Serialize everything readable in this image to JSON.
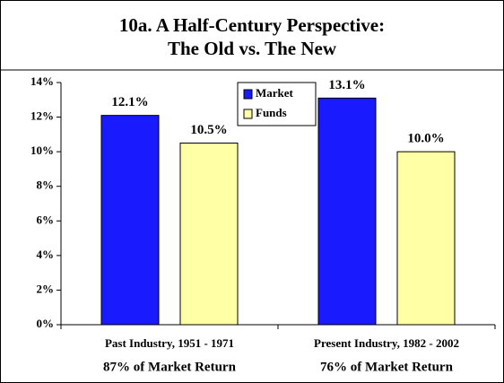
{
  "chart_data": {
    "type": "bar",
    "title": [
      "10a. A Half-Century Perspective:",
      "The Old vs. The New"
    ],
    "categories": [
      "Past Industry, 1951 - 1971",
      "Present Industry, 1982 - 2002"
    ],
    "category_notes": [
      "87% of Market Return",
      "76% of Market Return"
    ],
    "series": [
      {
        "name": "Market",
        "color": "#1a1aff",
        "values": [
          12.1,
          13.1
        ],
        "value_labels": [
          "12.1%",
          "13.1%"
        ]
      },
      {
        "name": "Funds",
        "color": "#ffffa6",
        "values": [
          10.5,
          10.0
        ],
        "value_labels": [
          "10.5%",
          "10.0%"
        ]
      }
    ],
    "ylim": [
      0,
      14
    ],
    "yticks": [
      {
        "value": 0,
        "label": "0%"
      },
      {
        "value": 2,
        "label": "2%"
      },
      {
        "value": 4,
        "label": "4%"
      },
      {
        "value": 6,
        "label": "6%"
      },
      {
        "value": 8,
        "label": "8%"
      },
      {
        "value": 10,
        "label": "10%"
      },
      {
        "value": 12,
        "label": "12%"
      },
      {
        "value": 14,
        "label": "14%"
      }
    ],
    "legend": "top-center"
  }
}
